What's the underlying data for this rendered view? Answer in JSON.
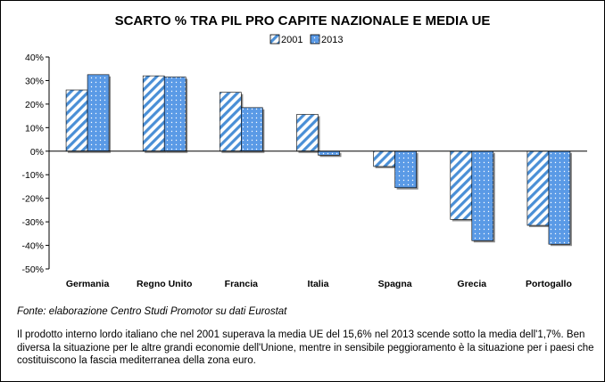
{
  "chart_data": {
    "type": "bar",
    "title": "SCARTO % TRA PIL PRO CAPITE NAZIONALE E MEDIA UE",
    "xlabel": "",
    "ylabel": "",
    "ylim": [
      -50,
      40
    ],
    "yticks": [
      40,
      30,
      20,
      10,
      0,
      -10,
      -20,
      -30,
      -40,
      -50
    ],
    "ytick_labels": [
      "40%",
      "30%",
      "20%",
      "10%",
      "0%",
      "-10%",
      "-20%",
      "-30%",
      "-40%",
      "-50%"
    ],
    "categories": [
      "Germania",
      "Regno Unito",
      "Francia",
      "Italia",
      "Spagna",
      "Grecia",
      "Portogallo"
    ],
    "series": [
      {
        "name": "2001",
        "values": [
          26,
          32,
          25,
          15.6,
          -6.5,
          -29,
          -31.5
        ]
      },
      {
        "name": "2013",
        "values": [
          32.5,
          31.5,
          18.5,
          -1.7,
          -15.5,
          -38,
          -39.5
        ]
      }
    ],
    "legend": "top-center",
    "grid": false
  },
  "colors": {
    "series_2001_stripe": "#4a8fd6",
    "series_2013_fill": "#5a9ae6",
    "series_2013_dot": "#ffffff",
    "zero_line": "#000000"
  },
  "footer": {
    "source": "Fonte: elaborazione Centro Studi Promotor su dati Eurostat",
    "description": "Il prodotto interno lordo italiano che nel 2001 superava la media UE del 15,6% nel 2013 scende sotto la media dell'1,7%. Ben diversa la situazione per le altre grandi economie dell'Unione, mentre in sensibile peggioramento è la situazione per i paesi che costituiscono la fascia mediterranea della zona euro."
  }
}
